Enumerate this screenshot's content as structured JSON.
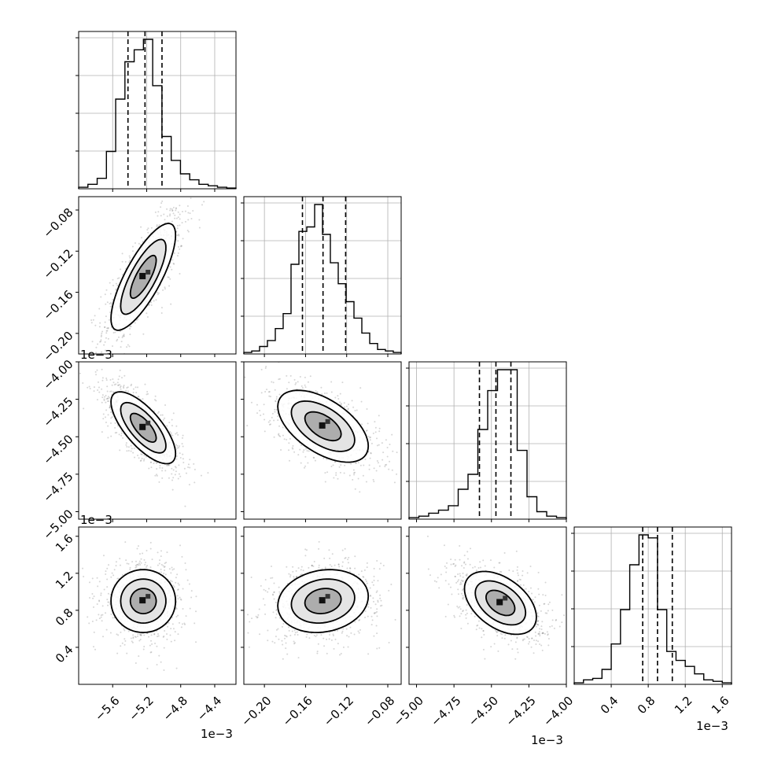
{
  "chart_data": {
    "type": "corner",
    "grid": true,
    "histogram_quantile_lines": "dashed",
    "colors": {
      "line": "#000000",
      "grid": "#b0b0b0",
      "points": "#5a5a5a",
      "background": "#ffffff"
    },
    "parameters": [
      {
        "range": [
          -6.0,
          -4.15
        ],
        "ticks": [
          -5.6,
          -5.2,
          -4.8,
          -4.4
        ],
        "tick_labels": [
          "−5.6",
          "−5.2",
          "−4.8",
          "−4.4"
        ],
        "offset_text": "1e−3",
        "quantiles": [
          -5.42,
          -5.22,
          -5.02
        ],
        "hist_counts": [
          1,
          3,
          7,
          25,
          60,
          85,
          93,
          100,
          69,
          35,
          19,
          10,
          6,
          3,
          2,
          1,
          0.5
        ]
      },
      {
        "range": [
          -0.22,
          -0.067
        ],
        "ticks": [
          -0.2,
          -0.16,
          -0.12,
          -0.08
        ],
        "tick_labels": [
          "−0.20",
          "−0.16",
          "−0.12",
          "−0.08"
        ],
        "offset_text": "",
        "quantiles": [
          -0.163,
          -0.143,
          -0.121
        ],
        "hist_counts": [
          1,
          2,
          5,
          9,
          17,
          27,
          60,
          82,
          85,
          100,
          80,
          61,
          47,
          35,
          24,
          14,
          7,
          3,
          2,
          1
        ]
      },
      {
        "range": [
          -5.05,
          -4.0
        ],
        "ticks": [
          -5.0,
          -4.75,
          -4.5,
          -4.25,
          -4.0
        ],
        "tick_labels": [
          "−5.00",
          "−4.75",
          "−4.50",
          "−4.25",
          "−4.00"
        ],
        "offset_text": "1e−3",
        "quantiles": [
          -4.58,
          -4.47,
          -4.37
        ],
        "hist_counts": [
          1,
          2,
          4,
          6,
          9,
          20,
          30,
          60,
          86,
          100,
          100,
          46,
          15,
          5,
          2,
          1
        ]
      },
      {
        "range": [
          0.0,
          1.7
        ],
        "ticks": [
          0.4,
          0.8,
          1.2,
          1.6
        ],
        "tick_labels": [
          "0.4",
          "0.8",
          "1.2",
          "1.6"
        ],
        "offset_text": "1e−3",
        "quantiles": [
          0.74,
          0.9,
          1.06
        ],
        "hist_counts": [
          1,
          3,
          4,
          10,
          27,
          50,
          80,
          100,
          98,
          50,
          22,
          16,
          12,
          7,
          3,
          2,
          1
        ]
      }
    ],
    "pairs": [
      {
        "x": 0,
        "y": 1,
        "center": [
          -5.24,
          -0.145
        ],
        "std": [
          0.19,
          0.026
        ],
        "rho": 0.78
      },
      {
        "x": 0,
        "y": 2,
        "center": [
          -5.24,
          -4.44
        ],
        "std": [
          0.19,
          0.12
        ],
        "rho": -0.72
      },
      {
        "x": 1,
        "y": 2,
        "center": [
          -0.143,
          -4.43
        ],
        "std": [
          0.022,
          0.12
        ],
        "rho": -0.55
      },
      {
        "x": 0,
        "y": 3,
        "center": [
          -5.24,
          0.9
        ],
        "std": [
          0.19,
          0.17
        ],
        "rho": 0.0
      },
      {
        "x": 1,
        "y": 3,
        "center": [
          -0.143,
          0.9
        ],
        "std": [
          0.022,
          0.17
        ],
        "rho": 0.15
      },
      {
        "x": 2,
        "y": 3,
        "center": [
          -4.44,
          0.88
        ],
        "std": [
          0.12,
          0.17
        ],
        "rho": -0.45
      }
    ]
  }
}
